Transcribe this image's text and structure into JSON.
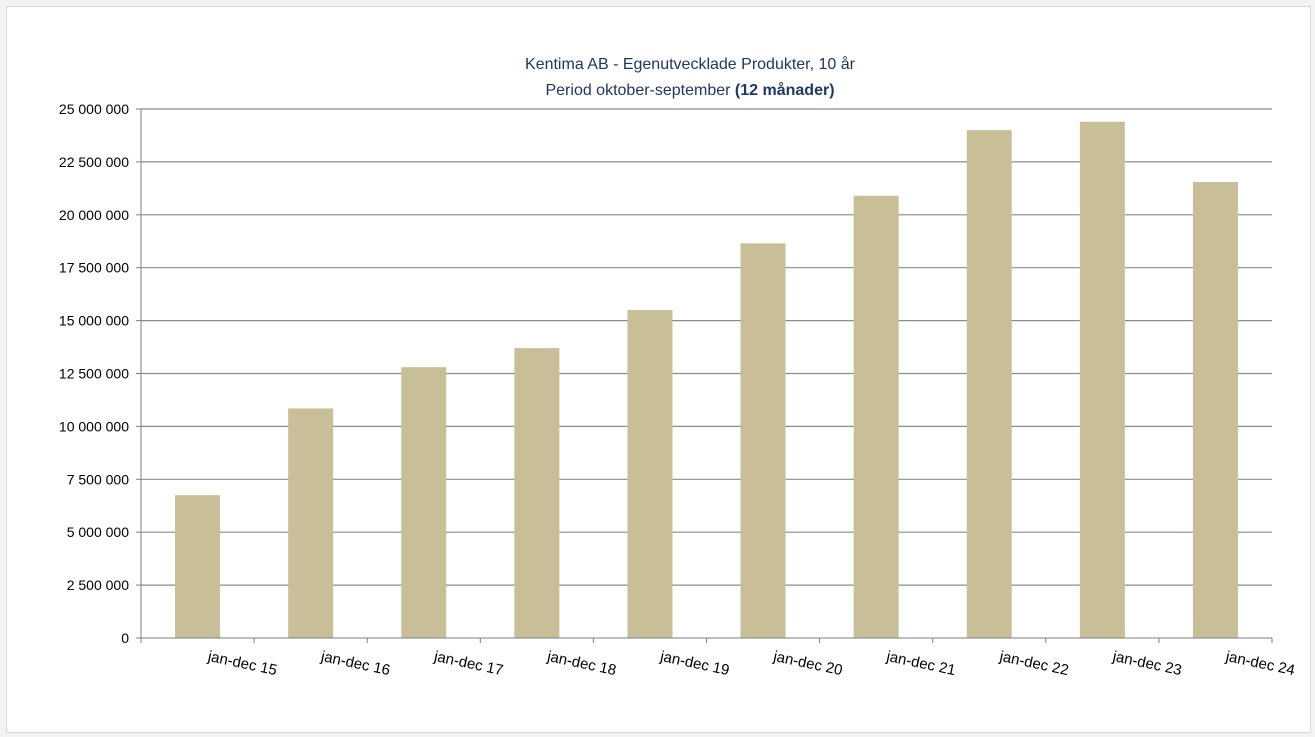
{
  "chart_data": {
    "type": "bar",
    "title_line1": "Kentima AB - Egenutvecklade Produkter, 10 år",
    "title_line2_prefix": "Period oktober-september ",
    "title_line2_bold": "(12 månader)",
    "xlabel": "",
    "ylabel": "",
    "ylim": [
      0,
      25000000
    ],
    "yticks": [
      0,
      2500000,
      5000000,
      7500000,
      10000000,
      12500000,
      15000000,
      17500000,
      20000000,
      22500000,
      25000000
    ],
    "ytick_labels": [
      "0",
      "2 500 000",
      "5 000 000",
      "7 500 000",
      "10 000 000",
      "12 500 000",
      "15 000 000",
      "17 500 000",
      "20 000 000",
      "22 500 000",
      "25 000 000"
    ],
    "categories": [
      "jan-dec 15",
      "jan-dec 16",
      "jan-dec 17",
      "jan-dec 18",
      "jan-dec 19",
      "jan-dec 20",
      "jan-dec 21",
      "jan-dec 22",
      "jan-dec 23",
      "jan-dec 24"
    ],
    "values": [
      6750000,
      10850000,
      12800000,
      13700000,
      15500000,
      18650000,
      20900000,
      24000000,
      24400000,
      21550000
    ],
    "grid": true,
    "legend": "none",
    "colors": {
      "bar": "#c8bf99",
      "title": "#1f3864",
      "grid": "#8c8c8c",
      "axis": "#7f7f7f"
    }
  }
}
